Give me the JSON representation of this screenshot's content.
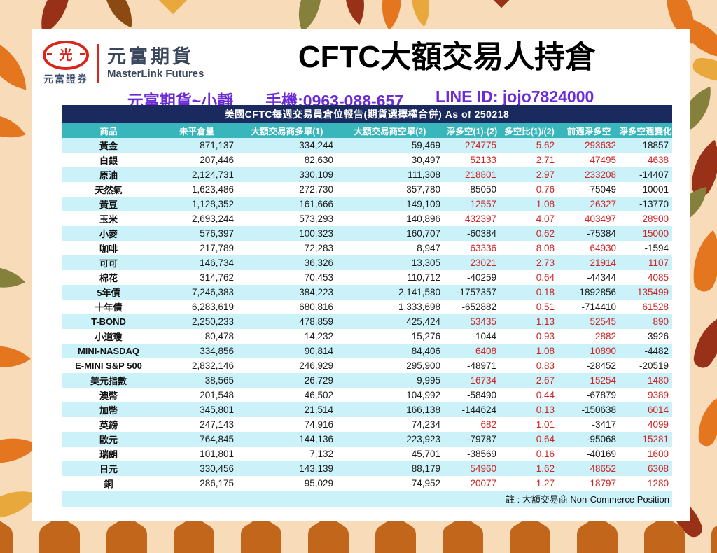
{
  "logo": {
    "mark_glyph": "光",
    "company_cn": "元富證券",
    "brand_cn": "元富期貨",
    "brand_en": "MasterLink Futures"
  },
  "header": {
    "title": "CFTC大額交易人持倉",
    "contact": {
      "agent": "元富期貨~小靜",
      "phone": "手機:0963-088-657",
      "line_id": "LINE ID: jojo7824000"
    }
  },
  "table": {
    "report_title": "美國CFTC每週交易員倉位報告(期貨選擇權合併) As of 250218",
    "columns": [
      "商品",
      "未平倉量",
      "大額交易商多單(1)",
      "大額交易商空單(2)",
      "淨多空(1)-(2)",
      "多空比(1)/(2)",
      "前週淨多空",
      "淨多空週變化"
    ],
    "note": "註 : 大額交易商 Non-Commerce Position",
    "rows": [
      [
        "黃金",
        "871,137",
        "334,244",
        "59,469",
        "274775",
        "5.62",
        "293632",
        "-18857"
      ],
      [
        "白銀",
        "207,446",
        "82,630",
        "30,497",
        "52133",
        "2.71",
        "47495",
        "4638"
      ],
      [
        "原油",
        "2,124,731",
        "330,109",
        "111,308",
        "218801",
        "2.97",
        "233208",
        "-14407"
      ],
      [
        "天然氣",
        "1,623,486",
        "272,730",
        "357,780",
        "-85050",
        "0.76",
        "-75049",
        "-10001"
      ],
      [
        "黃豆",
        "1,128,352",
        "161,666",
        "149,109",
        "12557",
        "1.08",
        "26327",
        "-13770"
      ],
      [
        "玉米",
        "2,693,244",
        "573,293",
        "140,896",
        "432397",
        "4.07",
        "403497",
        "28900"
      ],
      [
        "小麥",
        "576,397",
        "100,323",
        "160,707",
        "-60384",
        "0.62",
        "-75384",
        "15000"
      ],
      [
        "咖啡",
        "217,789",
        "72,283",
        "8,947",
        "63336",
        "8.08",
        "64930",
        "-1594"
      ],
      [
        "可可",
        "146,734",
        "36,326",
        "13,305",
        "23021",
        "2.73",
        "21914",
        "1107"
      ],
      [
        "棉花",
        "314,762",
        "70,453",
        "110,712",
        "-40259",
        "0.64",
        "-44344",
        "4085"
      ],
      [
        "5年債",
        "7,246,383",
        "384,223",
        "2,141,580",
        "-1757357",
        "0.18",
        "-1892856",
        "135499"
      ],
      [
        "十年債",
        "6,283,619",
        "680,816",
        "1,333,698",
        "-652882",
        "0.51",
        "-714410",
        "61528"
      ],
      [
        "T-BOND",
        "2,250,233",
        "478,859",
        "425,424",
        "53435",
        "1.13",
        "52545",
        "890"
      ],
      [
        "小道瓊",
        "80,478",
        "14,232",
        "15,276",
        "-1044",
        "0.93",
        "2882",
        "-3926"
      ],
      [
        "MINI-NASDAQ",
        "334,856",
        "90,814",
        "84,406",
        "6408",
        "1.08",
        "10890",
        "-4482"
      ],
      [
        "E-MINI S&P 500",
        "2,832,146",
        "246,929",
        "295,900",
        "-48971",
        "0.83",
        "-28452",
        "-20519"
      ],
      [
        "美元指數",
        "38,565",
        "26,729",
        "9,995",
        "16734",
        "2.67",
        "15254",
        "1480"
      ],
      [
        "澳幣",
        "201,548",
        "46,502",
        "104,992",
        "-58490",
        "0.44",
        "-67879",
        "9389"
      ],
      [
        "加幣",
        "345,801",
        "21,514",
        "166,138",
        "-144624",
        "0.13",
        "-150638",
        "6014"
      ],
      [
        "英鎊",
        "247,143",
        "74,916",
        "74,234",
        "682",
        "1.01",
        "-3417",
        "4099"
      ],
      [
        "歐元",
        "764,845",
        "144,136",
        "223,923",
        "-79787",
        "0.64",
        "-95068",
        "15281"
      ],
      [
        "瑞朗",
        "101,801",
        "7,132",
        "45,701",
        "-38569",
        "0.16",
        "-40169",
        "1600"
      ],
      [
        "日元",
        "330,456",
        "143,139",
        "88,179",
        "54960",
        "1.62",
        "48652",
        "6308"
      ],
      [
        "銅",
        "286,175",
        "95,029",
        "74,952",
        "20077",
        "1.27",
        "18797",
        "1280"
      ]
    ]
  },
  "colors": {
    "navy_bar": "#1b2a5e",
    "teal_header": "#39b6bb",
    "row_stripe": "#cbf1f9",
    "positive_red": "#cf2323",
    "negative_black": "#1a1a1a",
    "contact_purple": "#6b2bd6",
    "logo_red": "#d7261d",
    "brand_slate": "#3a475c",
    "border_peach": "#f8dcb9",
    "arch_orange": "#c2661c",
    "leaf_orange": "#e4761f",
    "leaf_dark_red": "#993018",
    "leaf_maroon": "#8a4a12",
    "leaf_olive": "#85803c",
    "leaf_golden": "#e9a83c"
  }
}
